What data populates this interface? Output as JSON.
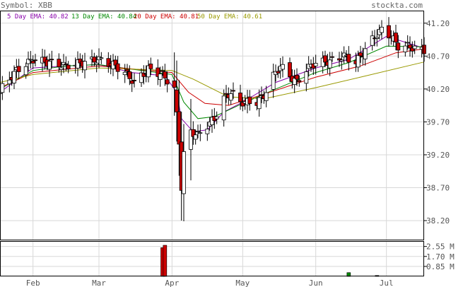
{
  "header": {
    "symbol_label": "Symbol: XBB",
    "brand": "stockta.com"
  },
  "ema_legend": [
    {
      "text": "5 Day EMA: 40.82",
      "color": "#8800aa"
    },
    {
      "text": "13 Day EMA: 40.84",
      "color": "#008800"
    },
    {
      "text": "20 Day EMA: 40.81",
      "color": "#cc0000"
    },
    {
      "text": "50 Day EMA: 40.61",
      "color": "#999900"
    }
  ],
  "colors": {
    "up": "#ffffff",
    "down": "#cc0000",
    "wick": "#000000",
    "grid": "#d8d8d8",
    "volume_last": "#008800"
  },
  "chart_data": {
    "type": "candlestick",
    "price_axis": {
      "ylim": [
        37.9,
        41.38
      ],
      "ticks": [
        "41.20",
        "40.70",
        "40.20",
        "39.70",
        "39.20",
        "38.70",
        "38.20"
      ]
    },
    "volume_axis": {
      "ylim": [
        0,
        2.95
      ],
      "ticks": [
        "2.55 M",
        "1.70 M",
        "0.85 M"
      ]
    },
    "x_axis": {
      "start": "2018-01-18",
      "end": "2018-07-17",
      "month_labels": [
        "Feb",
        "Mar",
        "Apr",
        "May",
        "Jun",
        "Jul"
      ]
    },
    "close_path": [
      [
        "2018-01-18",
        40.18
      ],
      [
        "2018-01-25",
        40.48
      ],
      [
        "2018-02-01",
        40.65
      ],
      [
        "2018-02-08",
        40.6
      ],
      [
        "2018-02-15",
        40.55
      ],
      [
        "2018-02-22",
        40.6
      ],
      [
        "2018-03-01",
        40.65
      ],
      [
        "2018-03-08",
        40.55
      ],
      [
        "2018-03-12",
        40.45
      ],
      [
        "2018-03-16",
        40.3
      ],
      [
        "2018-03-22",
        40.5
      ],
      [
        "2018-03-28",
        40.42
      ],
      [
        "2018-04-02",
        40.2
      ],
      [
        "2018-04-04",
        39.4
      ],
      [
        "2018-04-05",
        38.7
      ],
      [
        "2018-04-06",
        39.2
      ],
      [
        "2018-04-09",
        39.55
      ],
      [
        "2018-04-12",
        39.5
      ],
      [
        "2018-04-16",
        39.65
      ],
      [
        "2018-04-19",
        39.75
      ],
      [
        "2018-04-23",
        40.05
      ],
      [
        "2018-04-26",
        40.15
      ],
      [
        "2018-04-30",
        40.0
      ],
      [
        "2018-05-07",
        40.0
      ],
      [
        "2018-05-10",
        40.1
      ],
      [
        "2018-05-14",
        40.4
      ],
      [
        "2018-05-17",
        40.55
      ],
      [
        "2018-05-21",
        40.4
      ],
      [
        "2018-05-24",
        40.3
      ],
      [
        "2018-05-28",
        40.5
      ],
      [
        "2018-06-01",
        40.6
      ],
      [
        "2018-06-07",
        40.62
      ],
      [
        "2018-06-13",
        40.7
      ],
      [
        "2018-06-18",
        40.6
      ],
      [
        "2018-06-22",
        40.8
      ],
      [
        "2018-06-26",
        41.0
      ],
      [
        "2018-06-29",
        41.1
      ],
      [
        "2018-07-03",
        41.0
      ],
      [
        "2018-07-06",
        40.85
      ],
      [
        "2018-07-10",
        40.85
      ],
      [
        "2018-07-17",
        40.78
      ]
    ],
    "ema_series": [
      {
        "name": "5 Day EMA",
        "color": "#8800aa",
        "points": [
          [
            "2018-01-18",
            40.15
          ],
          [
            "2018-02-01",
            40.52
          ],
          [
            "2018-02-15",
            40.55
          ],
          [
            "2018-03-01",
            40.57
          ],
          [
            "2018-03-15",
            40.45
          ],
          [
            "2018-03-29",
            40.4
          ],
          [
            "2018-04-03",
            40.15
          ],
          [
            "2018-04-05",
            39.75
          ],
          [
            "2018-04-10",
            39.55
          ],
          [
            "2018-04-16",
            39.58
          ],
          [
            "2018-04-23",
            39.85
          ],
          [
            "2018-05-01",
            40.0
          ],
          [
            "2018-05-15",
            40.3
          ],
          [
            "2018-06-01",
            40.52
          ],
          [
            "2018-06-15",
            40.65
          ],
          [
            "2018-07-01",
            41.0
          ],
          [
            "2018-07-17",
            40.82
          ]
        ]
      },
      {
        "name": "13 Day EMA",
        "color": "#008800",
        "points": [
          [
            "2018-01-18",
            40.2
          ],
          [
            "2018-02-01",
            40.48
          ],
          [
            "2018-02-15",
            40.55
          ],
          [
            "2018-03-01",
            40.57
          ],
          [
            "2018-03-15",
            40.5
          ],
          [
            "2018-04-01",
            40.42
          ],
          [
            "2018-04-06",
            40.0
          ],
          [
            "2018-04-12",
            39.75
          ],
          [
            "2018-04-19",
            39.78
          ],
          [
            "2018-05-01",
            39.98
          ],
          [
            "2018-05-15",
            40.2
          ],
          [
            "2018-06-01",
            40.45
          ],
          [
            "2018-06-15",
            40.6
          ],
          [
            "2018-07-01",
            40.85
          ],
          [
            "2018-07-17",
            40.84
          ]
        ]
      },
      {
        "name": "20 Day EMA",
        "color": "#cc0000",
        "points": [
          [
            "2018-01-18",
            40.22
          ],
          [
            "2018-02-01",
            40.45
          ],
          [
            "2018-03-01",
            40.55
          ],
          [
            "2018-04-01",
            40.45
          ],
          [
            "2018-04-08",
            40.15
          ],
          [
            "2018-04-15",
            39.98
          ],
          [
            "2018-04-25",
            39.95
          ],
          [
            "2018-05-10",
            40.12
          ],
          [
            "2018-06-01",
            40.38
          ],
          [
            "2018-06-20",
            40.55
          ],
          [
            "2018-07-05",
            40.75
          ],
          [
            "2018-07-17",
            40.81
          ]
        ]
      },
      {
        "name": "50 Day EMA",
        "color": "#999900",
        "points": [
          [
            "2018-01-18",
            40.3
          ],
          [
            "2018-02-01",
            40.42
          ],
          [
            "2018-03-01",
            40.52
          ],
          [
            "2018-04-01",
            40.48
          ],
          [
            "2018-04-10",
            40.35
          ],
          [
            "2018-04-25",
            40.08
          ],
          [
            "2018-05-10",
            40.05
          ],
          [
            "2018-06-01",
            40.22
          ],
          [
            "2018-06-20",
            40.38
          ],
          [
            "2018-07-17",
            40.61
          ]
        ]
      }
    ],
    "volume_spikes": [
      {
        "date": "2018-03-28",
        "value": 2.45,
        "color": "#cc0000"
      },
      {
        "date": "2018-03-29",
        "value": 2.65,
        "color": "#cc0000"
      },
      {
        "date": "2018-06-15",
        "value": 0.32,
        "color": "#008800"
      },
      {
        "date": "2018-06-27",
        "value": 0.08,
        "color": "#555555"
      }
    ],
    "volume_baseline": 0.03
  }
}
